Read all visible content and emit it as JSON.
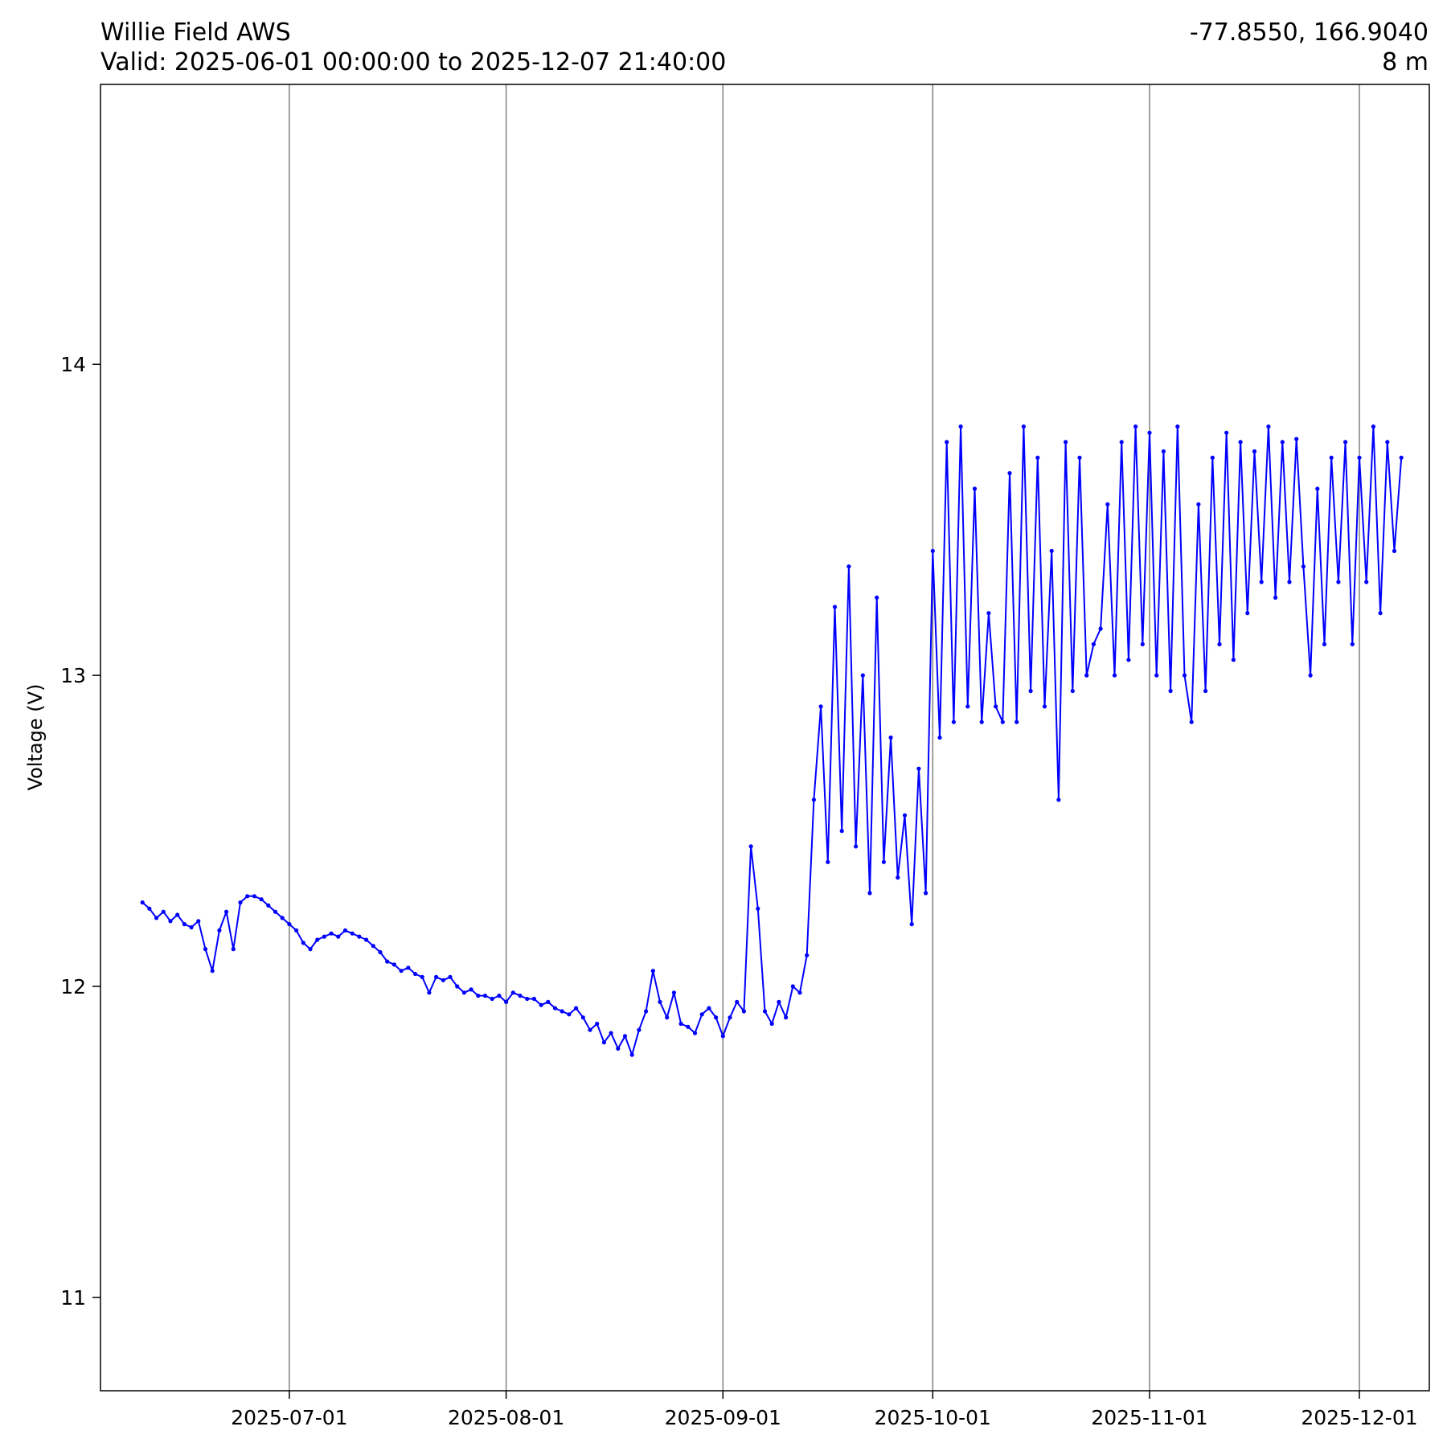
{
  "header": {
    "station": "Willie Field AWS",
    "valid": "Valid: 2025-06-01 00:00:00 to 2025-12-07 21:40:00",
    "coords": "-77.8550, 166.9040",
    "elevation": "8 m"
  },
  "chart_data": {
    "type": "line",
    "title": "Willie Field AWS",
    "xlabel": "",
    "ylabel": "Voltage (V)",
    "x_type": "date",
    "xlim": [
      "2025-06-04",
      "2025-12-11"
    ],
    "ylim": [
      10.7,
      14.9
    ],
    "x_ticks": [
      "2025-07-01",
      "2025-08-01",
      "2025-09-01",
      "2025-10-01",
      "2025-11-01",
      "2025-12-01"
    ],
    "y_ticks": [
      11,
      12,
      13,
      14
    ],
    "grid": "vertical lines at x ticks",
    "legend": "none",
    "color": "#0000ff",
    "marker": "dot",
    "series": [
      {
        "points": [
          [
            "2025-06-10",
            12.27
          ],
          [
            "2025-06-11",
            12.25
          ],
          [
            "2025-06-12",
            12.22
          ],
          [
            "2025-06-13",
            12.24
          ],
          [
            "2025-06-14",
            12.21
          ],
          [
            "2025-06-15",
            12.23
          ],
          [
            "2025-06-16",
            12.2
          ],
          [
            "2025-06-17",
            12.19
          ],
          [
            "2025-06-18",
            12.21
          ],
          [
            "2025-06-19",
            12.12
          ],
          [
            "2025-06-20",
            12.05
          ],
          [
            "2025-06-21",
            12.18
          ],
          [
            "2025-06-22",
            12.24
          ],
          [
            "2025-06-23",
            12.12
          ],
          [
            "2025-06-24",
            12.27
          ],
          [
            "2025-06-25",
            12.29
          ],
          [
            "2025-06-26",
            12.29
          ],
          [
            "2025-06-27",
            12.28
          ],
          [
            "2025-06-28",
            12.26
          ],
          [
            "2025-06-29",
            12.24
          ],
          [
            "2025-06-30",
            12.22
          ],
          [
            "2025-07-01",
            12.2
          ],
          [
            "2025-07-02",
            12.18
          ],
          [
            "2025-07-03",
            12.14
          ],
          [
            "2025-07-04",
            12.12
          ],
          [
            "2025-07-05",
            12.15
          ],
          [
            "2025-07-06",
            12.16
          ],
          [
            "2025-07-07",
            12.17
          ],
          [
            "2025-07-08",
            12.16
          ],
          [
            "2025-07-09",
            12.18
          ],
          [
            "2025-07-10",
            12.17
          ],
          [
            "2025-07-11",
            12.16
          ],
          [
            "2025-07-12",
            12.15
          ],
          [
            "2025-07-13",
            12.13
          ],
          [
            "2025-07-14",
            12.11
          ],
          [
            "2025-07-15",
            12.08
          ],
          [
            "2025-07-16",
            12.07
          ],
          [
            "2025-07-17",
            12.05
          ],
          [
            "2025-07-18",
            12.06
          ],
          [
            "2025-07-19",
            12.04
          ],
          [
            "2025-07-20",
            12.03
          ],
          [
            "2025-07-21",
            11.98
          ],
          [
            "2025-07-22",
            12.03
          ],
          [
            "2025-07-23",
            12.02
          ],
          [
            "2025-07-24",
            12.03
          ],
          [
            "2025-07-25",
            12.0
          ],
          [
            "2025-07-26",
            11.98
          ],
          [
            "2025-07-27",
            11.99
          ],
          [
            "2025-07-28",
            11.97
          ],
          [
            "2025-07-29",
            11.97
          ],
          [
            "2025-07-30",
            11.96
          ],
          [
            "2025-07-31",
            11.97
          ],
          [
            "2025-08-01",
            11.95
          ],
          [
            "2025-08-02",
            11.98
          ],
          [
            "2025-08-03",
            11.97
          ],
          [
            "2025-08-04",
            11.96
          ],
          [
            "2025-08-05",
            11.96
          ],
          [
            "2025-08-06",
            11.94
          ],
          [
            "2025-08-07",
            11.95
          ],
          [
            "2025-08-08",
            11.93
          ],
          [
            "2025-08-09",
            11.92
          ],
          [
            "2025-08-10",
            11.91
          ],
          [
            "2025-08-11",
            11.93
          ],
          [
            "2025-08-12",
            11.9
          ],
          [
            "2025-08-13",
            11.86
          ],
          [
            "2025-08-14",
            11.88
          ],
          [
            "2025-08-15",
            11.82
          ],
          [
            "2025-08-16",
            11.85
          ],
          [
            "2025-08-17",
            11.8
          ],
          [
            "2025-08-18",
            11.84
          ],
          [
            "2025-08-19",
            11.78
          ],
          [
            "2025-08-20",
            11.86
          ],
          [
            "2025-08-21",
            11.92
          ],
          [
            "2025-08-22",
            12.05
          ],
          [
            "2025-08-23",
            11.95
          ],
          [
            "2025-08-24",
            11.9
          ],
          [
            "2025-08-25",
            11.98
          ],
          [
            "2025-08-26",
            11.88
          ],
          [
            "2025-08-27",
            11.87
          ],
          [
            "2025-08-28",
            11.85
          ],
          [
            "2025-08-29",
            11.91
          ],
          [
            "2025-08-30",
            11.93
          ],
          [
            "2025-08-31",
            11.9
          ],
          [
            "2025-09-01",
            11.84
          ],
          [
            "2025-09-02",
            11.9
          ],
          [
            "2025-09-03",
            11.95
          ],
          [
            "2025-09-04",
            11.92
          ],
          [
            "2025-09-05",
            12.45
          ],
          [
            "2025-09-06",
            12.25
          ],
          [
            "2025-09-07",
            11.92
          ],
          [
            "2025-09-08",
            11.88
          ],
          [
            "2025-09-09",
            11.95
          ],
          [
            "2025-09-10",
            11.9
          ],
          [
            "2025-09-11",
            12.0
          ],
          [
            "2025-09-12",
            11.98
          ],
          [
            "2025-09-13",
            12.1
          ],
          [
            "2025-09-14",
            12.6
          ],
          [
            "2025-09-15",
            12.9
          ],
          [
            "2025-09-16",
            12.4
          ],
          [
            "2025-09-17",
            13.22
          ],
          [
            "2025-09-18",
            12.5
          ],
          [
            "2025-09-19",
            13.35
          ],
          [
            "2025-09-20",
            12.45
          ],
          [
            "2025-09-21",
            13.0
          ],
          [
            "2025-09-22",
            12.3
          ],
          [
            "2025-09-23",
            13.25
          ],
          [
            "2025-09-24",
            12.4
          ],
          [
            "2025-09-25",
            12.8
          ],
          [
            "2025-09-26",
            12.35
          ],
          [
            "2025-09-27",
            12.55
          ],
          [
            "2025-09-28",
            12.2
          ],
          [
            "2025-09-29",
            12.7
          ],
          [
            "2025-09-30",
            12.3
          ],
          [
            "2025-10-01",
            13.4
          ],
          [
            "2025-10-02",
            12.8
          ],
          [
            "2025-10-03",
            13.75
          ],
          [
            "2025-10-04",
            12.85
          ],
          [
            "2025-10-05",
            13.8
          ],
          [
            "2025-10-06",
            12.9
          ],
          [
            "2025-10-07",
            13.6
          ],
          [
            "2025-10-08",
            12.85
          ],
          [
            "2025-10-09",
            13.2
          ],
          [
            "2025-10-10",
            12.9
          ],
          [
            "2025-10-11",
            12.85
          ],
          [
            "2025-10-12",
            13.65
          ],
          [
            "2025-10-13",
            12.85
          ],
          [
            "2025-10-14",
            13.8
          ],
          [
            "2025-10-15",
            12.95
          ],
          [
            "2025-10-16",
            13.7
          ],
          [
            "2025-10-17",
            12.9
          ],
          [
            "2025-10-18",
            13.4
          ],
          [
            "2025-10-19",
            12.6
          ],
          [
            "2025-10-20",
            13.75
          ],
          [
            "2025-10-21",
            12.95
          ],
          [
            "2025-10-22",
            13.7
          ],
          [
            "2025-10-23",
            13.0
          ],
          [
            "2025-10-24",
            13.1
          ],
          [
            "2025-10-25",
            13.15
          ],
          [
            "2025-10-26",
            13.55
          ],
          [
            "2025-10-27",
            13.0
          ],
          [
            "2025-10-28",
            13.75
          ],
          [
            "2025-10-29",
            13.05
          ],
          [
            "2025-10-30",
            13.8
          ],
          [
            "2025-10-31",
            13.1
          ],
          [
            "2025-11-01",
            13.78
          ],
          [
            "2025-11-02",
            13.0
          ],
          [
            "2025-11-03",
            13.72
          ],
          [
            "2025-11-04",
            12.95
          ],
          [
            "2025-11-05",
            13.8
          ],
          [
            "2025-11-06",
            13.0
          ],
          [
            "2025-11-07",
            12.85
          ],
          [
            "2025-11-08",
            13.55
          ],
          [
            "2025-11-09",
            12.95
          ],
          [
            "2025-11-10",
            13.7
          ],
          [
            "2025-11-11",
            13.1
          ],
          [
            "2025-11-12",
            13.78
          ],
          [
            "2025-11-13",
            13.05
          ],
          [
            "2025-11-14",
            13.75
          ],
          [
            "2025-11-15",
            13.2
          ],
          [
            "2025-11-16",
            13.72
          ],
          [
            "2025-11-17",
            13.3
          ],
          [
            "2025-11-18",
            13.8
          ],
          [
            "2025-11-19",
            13.25
          ],
          [
            "2025-11-20",
            13.75
          ],
          [
            "2025-11-21",
            13.3
          ],
          [
            "2025-11-22",
            13.76
          ],
          [
            "2025-11-23",
            13.35
          ],
          [
            "2025-11-24",
            13.0
          ],
          [
            "2025-11-25",
            13.6
          ],
          [
            "2025-11-26",
            13.1
          ],
          [
            "2025-11-27",
            13.7
          ],
          [
            "2025-11-28",
            13.3
          ],
          [
            "2025-11-29",
            13.75
          ],
          [
            "2025-11-30",
            13.1
          ],
          [
            "2025-12-01",
            13.7
          ],
          [
            "2025-12-02",
            13.3
          ],
          [
            "2025-12-03",
            13.8
          ],
          [
            "2025-12-04",
            13.2
          ],
          [
            "2025-12-05",
            13.75
          ],
          [
            "2025-12-06",
            13.4
          ],
          [
            "2025-12-07",
            13.7
          ]
        ]
      }
    ]
  }
}
